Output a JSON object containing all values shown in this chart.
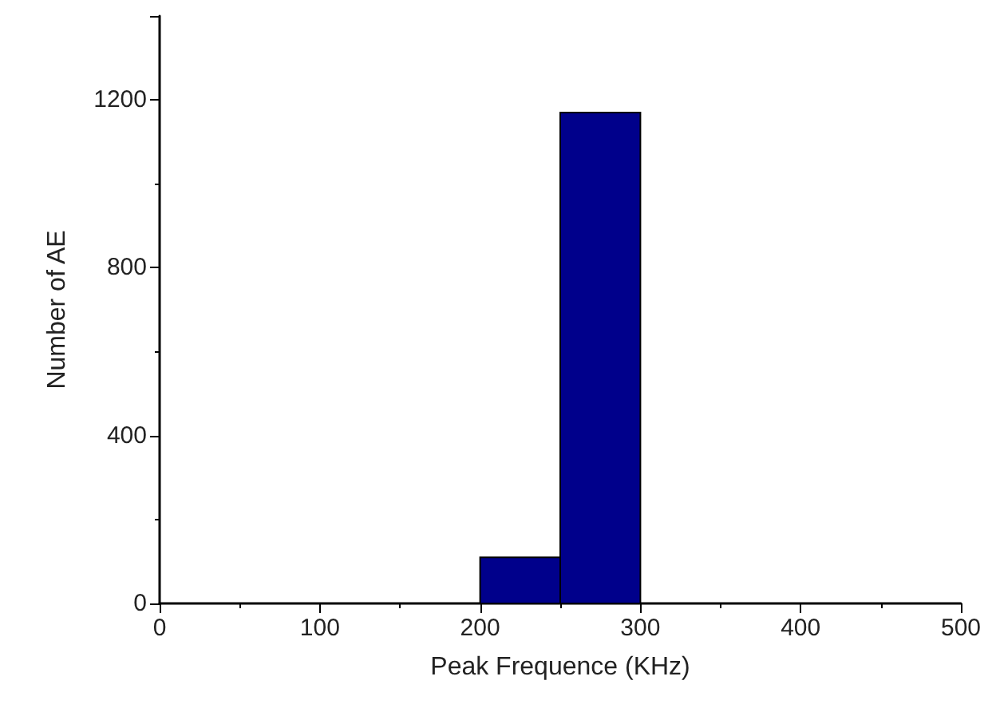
{
  "chart_data": {
    "type": "histogram",
    "xlabel": "Peak Frequence (KHz)",
    "ylabel": "Number of AE",
    "bins": [
      200,
      250,
      300
    ],
    "values": [
      110,
      1170
    ],
    "color": "#00008b",
    "xlim": [
      0,
      500
    ],
    "xticks": [
      0,
      100,
      200,
      300,
      400,
      500
    ],
    "ylim": [
      0,
      1400
    ],
    "yticks": [
      0,
      400,
      800,
      1200
    ]
  }
}
